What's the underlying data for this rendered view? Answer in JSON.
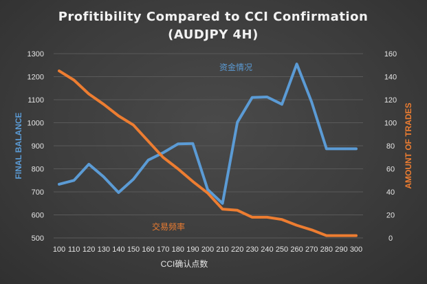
{
  "chart_data": {
    "type": "line",
    "title_line1": "Profitibility Compared to CCI Confirmation",
    "title_line2": "(AUDJPY 4H)",
    "xlabel": "CCI确认点数",
    "ylabel_left": "FINAL BALANCE",
    "ylabel_right": "AMOUNT OF TRADES",
    "categories": [
      100,
      110,
      120,
      130,
      140,
      150,
      160,
      170,
      180,
      190,
      200,
      210,
      220,
      230,
      240,
      250,
      260,
      270,
      280,
      290,
      300
    ],
    "y_left_ticks": [
      500,
      600,
      700,
      800,
      900,
      1000,
      1100,
      1200,
      1300
    ],
    "y_right_ticks": [
      0,
      20,
      40,
      60,
      80,
      100,
      120,
      140,
      160
    ],
    "ylim_left": [
      500,
      1300
    ],
    "ylim_right": [
      0,
      160
    ],
    "grid": true,
    "series": [
      {
        "name": "资金情况",
        "axis": "left",
        "color": "#5b9bd5",
        "values": [
          733,
          750,
          820,
          765,
          697,
          755,
          838,
          870,
          908,
          910,
          710,
          650,
          1002,
          1110,
          1112,
          1080,
          1255,
          1090,
          887,
          887,
          887
        ]
      },
      {
        "name": "交易频率",
        "axis": "right",
        "color": "#ed7d31",
        "values": [
          145,
          137,
          125,
          116,
          106,
          98,
          84,
          70,
          60,
          49,
          39,
          25,
          24,
          18,
          18,
          16,
          11,
          7,
          2,
          2,
          2
        ]
      }
    ]
  }
}
